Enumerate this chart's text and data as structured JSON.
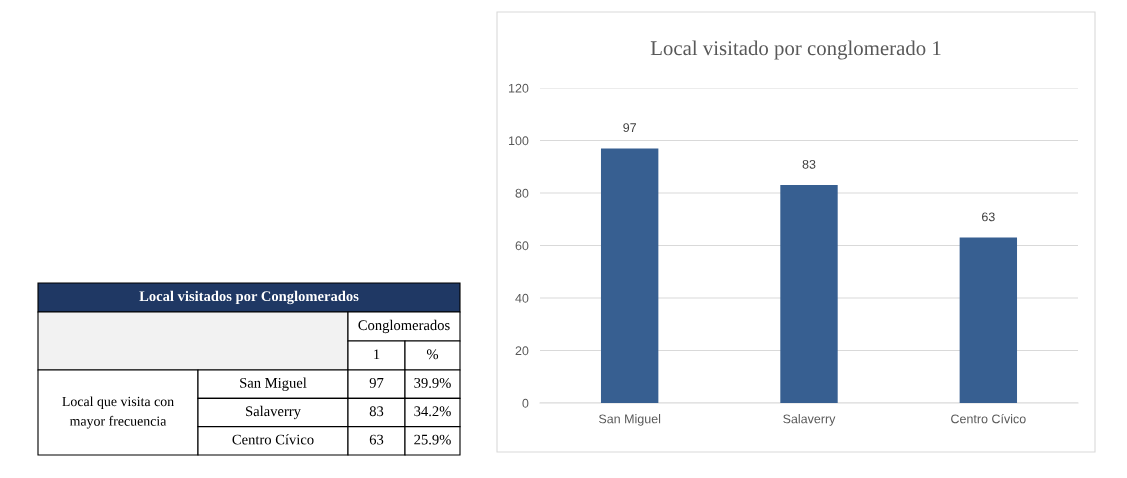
{
  "chart_data": {
    "type": "bar",
    "title": "Local visitado por conglomerado 1",
    "categories": [
      "San Miguel",
      "Salaverry",
      "Centro Cívico"
    ],
    "values": [
      97,
      83,
      63
    ],
    "color": "#375f91",
    "ylim": [
      0,
      120
    ],
    "yticks": [
      0,
      20,
      40,
      60,
      80,
      100,
      120
    ],
    "grid": "y",
    "data_labels": true,
    "annotations": [
      "Local visitados por Conglomerados",
      "Conglomerados",
      "1",
      "%",
      "Local que visita con mayor frecuencia",
      "39.9%",
      "34.2%",
      "25.9%",
      "97",
      "83",
      "63"
    ]
  }
}
